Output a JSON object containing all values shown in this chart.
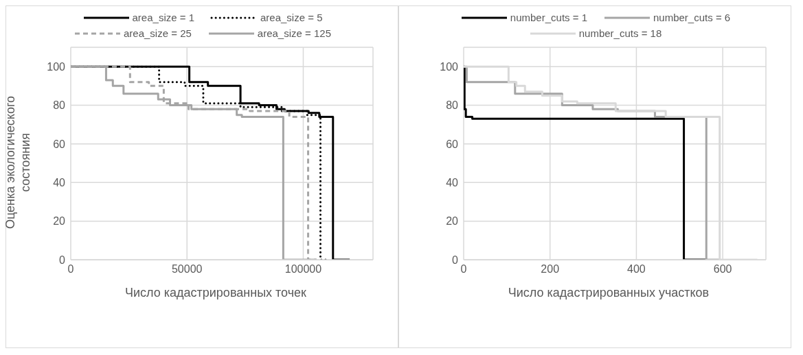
{
  "chart_data": [
    {
      "type": "step",
      "xlabel": "Число кадастрированных точек",
      "ylabel": "Оценка экологического состояния",
      "xlim": [
        0,
        130000
      ],
      "xticks": [
        0,
        50000,
        100000
      ],
      "ylim": [
        0,
        110
      ],
      "yticks": [
        0,
        20,
        40,
        60,
        80,
        100
      ],
      "grid": true,
      "legend": "top",
      "series": [
        {
          "name": "area_size = 1",
          "color": "#000000",
          "line_style": "solid",
          "x": [
            0,
            51000,
            59000,
            73000,
            81000,
            88500,
            92000,
            102300,
            106900,
            112800,
            120000
          ],
          "values": [
            100,
            92,
            90,
            81,
            80,
            78,
            77,
            76,
            74,
            0,
            0
          ]
        },
        {
          "name": "area_size = 5",
          "color": "#000000",
          "line_style": "dotted",
          "x": [
            0,
            38000,
            49000,
            57000,
            73000,
            90700,
            101700,
            107400,
            111000
          ],
          "values": [
            100,
            92,
            90,
            81,
            79,
            77,
            75,
            0,
            0
          ]
        },
        {
          "name": "area_size = 25",
          "color": "#a5a5a5",
          "line_style": "dashed",
          "x": [
            0,
            25500,
            33600,
            40000,
            50700,
            77000,
            94000,
            102100,
            105700
          ],
          "values": [
            100,
            92,
            90,
            81,
            78,
            77,
            74,
            0,
            0
          ]
        },
        {
          "name": "area_size = 125",
          "color": "#a5a5a5",
          "line_style": "solid",
          "x": [
            0,
            15200,
            18100,
            22700,
            37600,
            42700,
            51900,
            71400,
            73600,
            91400,
            105700
          ],
          "values": [
            100,
            93,
            90,
            86,
            83,
            80,
            78,
            75,
            74,
            0,
            0
          ]
        }
      ]
    },
    {
      "type": "step",
      "xlabel": "Число кадастрированных участков",
      "xlim": [
        0,
        700
      ],
      "xticks": [
        0,
        200,
        400,
        600
      ],
      "ylim": [
        0,
        110
      ],
      "yticks": [
        0,
        20,
        40,
        60,
        80,
        100
      ],
      "grid": true,
      "legend": "top",
      "series": [
        {
          "name": "number_cuts = 1",
          "color": "#000000",
          "line_style": "solid",
          "x": [
            0,
            2,
            5,
            20,
            510,
            562
          ],
          "values": [
            100,
            78,
            74,
            73,
            0,
            0
          ]
        },
        {
          "name": "number_cuts = 6",
          "color": "#a5a5a5",
          "line_style": "solid",
          "x": [
            0,
            7,
            119,
            228,
            299,
            357,
            443,
            562,
            593
          ],
          "values": [
            100,
            92,
            86,
            80,
            78,
            77,
            74,
            0,
            0
          ]
        },
        {
          "name": "number_cuts = 18",
          "color": "#d9d9d9",
          "line_style": "solid",
          "x": [
            0,
            104,
            122,
            142,
            182,
            228,
            263,
            352,
            468,
            593,
            680
          ],
          "values": [
            100,
            92,
            90,
            87,
            85,
            82,
            81,
            77,
            74,
            0,
            0
          ]
        }
      ]
    }
  ]
}
